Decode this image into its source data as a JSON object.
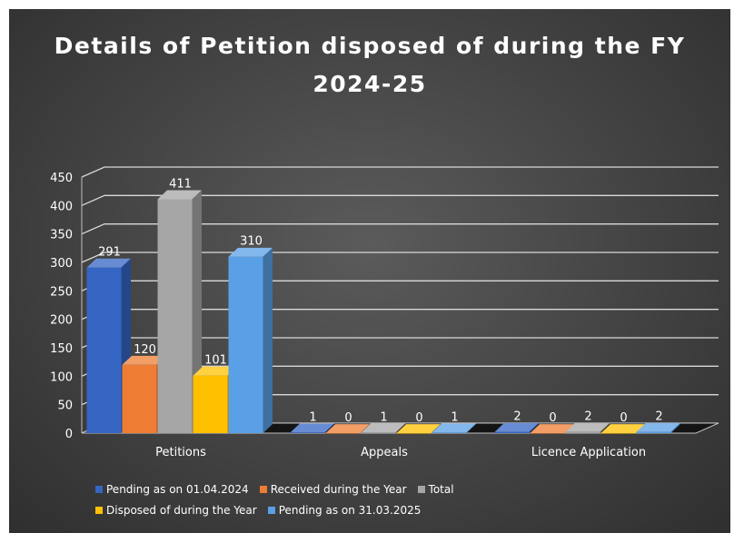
{
  "chart_data": {
    "type": "bar",
    "title": "Details of Petition disposed of during the FY 2024-25",
    "title_lines": [
      "Details of Petition disposed of during the FY",
      "2024-25"
    ],
    "categories": [
      "Petitions",
      "Appeals",
      "Licence Application"
    ],
    "series": [
      {
        "name": "Pending as on 01.04.2024",
        "values": [
          291,
          1,
          2
        ],
        "color": "#3566c4"
      },
      {
        "name": "Received during the Year",
        "values": [
          120,
          0,
          0
        ],
        "color": "#ee7d33"
      },
      {
        "name": "Total",
        "values": [
          411,
          1,
          2
        ],
        "color": "#a6a6a6"
      },
      {
        "name": "Disposed of during the Year",
        "values": [
          101,
          0,
          0
        ],
        "color": "#ffc000"
      },
      {
        "name": "Pending as on 31.03.2025",
        "values": [
          310,
          1,
          2
        ],
        "color": "#5aa0e6"
      }
    ],
    "ylim": [
      0,
      450
    ],
    "yticks": [
      "0",
      "50",
      "100",
      "150",
      "200",
      "250",
      "300",
      "350",
      "400",
      "450"
    ],
    "grid": true,
    "legend_position": "bottom",
    "background": "#474747"
  }
}
